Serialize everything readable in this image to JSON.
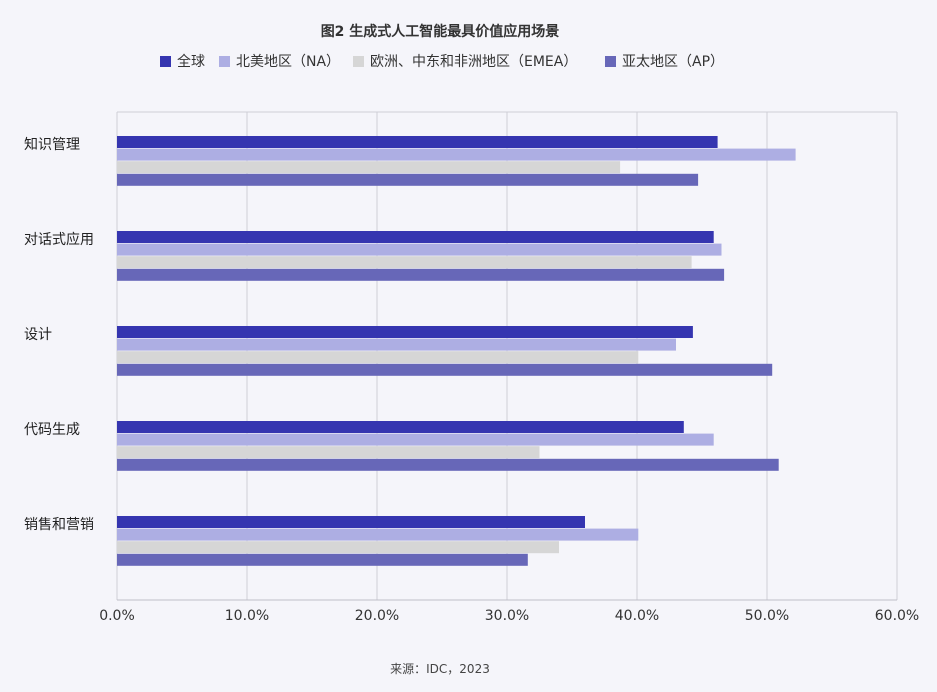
{
  "chart_data": {
    "type": "bar",
    "orientation": "horizontal",
    "title": "图2 生成式人工智能最具价值应用场景",
    "source": "来源：IDC，2023",
    "categories": [
      "知识管理",
      "对话式应用",
      "设计",
      "代码生成",
      "销售和营销"
    ],
    "series": [
      {
        "name": "全球",
        "color": "#3535b0",
        "values": [
          46.2,
          45.9,
          44.3,
          43.6,
          36.0
        ]
      },
      {
        "name": "北美地区（NA）",
        "color": "#adaee3",
        "values": [
          52.2,
          46.5,
          43.0,
          45.9,
          40.1
        ]
      },
      {
        "name": "欧洲、中东和非洲地区（EMEA）",
        "color": "#d6d6d6",
        "values": [
          38.7,
          44.2,
          40.1,
          32.5,
          34.0
        ]
      },
      {
        "name": "亚太地区（AP）",
        "color": "#6767b8",
        "values": [
          44.7,
          46.7,
          50.4,
          50.9,
          31.6
        ]
      }
    ],
    "xlim": [
      0,
      60
    ],
    "xticks": [
      "0.0%",
      "10.0%",
      "20.0%",
      "30.0%",
      "40.0%",
      "50.0%",
      "60.0%"
    ],
    "grid": true,
    "legend_position": "top"
  }
}
